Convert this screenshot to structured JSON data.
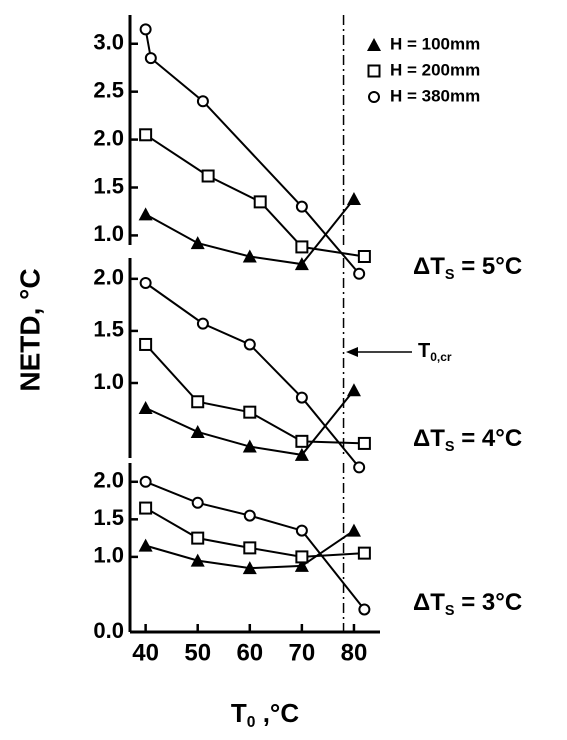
{
  "chart_data": [
    {
      "type": "line",
      "ylim": [
        0.9,
        3.3
      ],
      "yticks": [
        {
          "value": 1.0,
          "label": "1.0"
        },
        {
          "value": 1.5,
          "label": "1.5"
        },
        {
          "value": 2.0,
          "label": "2.0"
        },
        {
          "value": 2.5,
          "label": "2.5"
        },
        {
          "value": 3.0,
          "label": "3.0"
        }
      ],
      "reference_x": 78,
      "annotation": {
        "main": "ΔT",
        "sub": "S",
        "rest": " = 5°C"
      },
      "legend": "upper right",
      "series": [
        {
          "name": "H = 100mm",
          "marker": "triangle",
          "color": "#000000",
          "x": [
            40,
            50,
            60,
            70,
            80
          ],
          "values": [
            1.22,
            0.92,
            0.78,
            0.7,
            1.38
          ]
        },
        {
          "name": "H = 200mm",
          "marker": "square",
          "color": "#000000",
          "x": [
            40,
            52,
            62,
            70,
            82
          ],
          "values": [
            2.05,
            1.62,
            1.35,
            0.88,
            0.78
          ]
        },
        {
          "name": "H = 380mm",
          "marker": "circle",
          "color": "#000000",
          "x": [
            40,
            41,
            51,
            70,
            81
          ],
          "values": [
            3.15,
            2.85,
            2.4,
            1.3,
            0.6
          ]
        }
      ]
    },
    {
      "type": "line",
      "ylim": [
        0.28,
        2.2
      ],
      "yticks": [
        {
          "value": 1.0,
          "label": "1.0"
        },
        {
          "value": 1.5,
          "label": "1.5"
        },
        {
          "value": 2.0,
          "label": "2.0"
        }
      ],
      "ylabel": "NETD, °C",
      "reference_x": 78,
      "reference_label": {
        "main": "T",
        "sub": "0,cr"
      },
      "annotation": {
        "main": "ΔT",
        "sub": "S",
        "rest": " = 4°C"
      },
      "series": [
        {
          "marker": "triangle",
          "color": "#000000",
          "x": [
            40,
            50,
            60,
            70,
            80
          ],
          "values": [
            0.76,
            0.53,
            0.39,
            0.31,
            0.93
          ]
        },
        {
          "marker": "square",
          "color": "#000000",
          "x": [
            40,
            50,
            60,
            70,
            82
          ],
          "values": [
            1.37,
            0.82,
            0.72,
            0.44,
            0.42
          ]
        },
        {
          "marker": "circle",
          "color": "#000000",
          "x": [
            40,
            51,
            60,
            70,
            81
          ],
          "values": [
            1.96,
            1.57,
            1.37,
            0.86,
            0.19
          ]
        }
      ]
    },
    {
      "type": "line",
      "ylim": [
        0,
        2.25
      ],
      "yticks": [
        {
          "value": 0.0,
          "label": "0.0"
        },
        {
          "value": 1.0,
          "label": "1.0"
        },
        {
          "value": 1.5,
          "label": "1.5"
        },
        {
          "value": 2.0,
          "label": "2.0"
        }
      ],
      "xlim": [
        37,
        85
      ],
      "xticks": [
        40,
        50,
        60,
        70,
        80
      ],
      "xlabel": {
        "main": "T",
        "sub": "0",
        "rest": " ,°C"
      },
      "reference_x": 78,
      "annotation": {
        "main": "ΔT",
        "sub": "S",
        "rest": " = 3°C"
      },
      "series": [
        {
          "marker": "triangle",
          "color": "#000000",
          "x": [
            40,
            50,
            60,
            70,
            80
          ],
          "values": [
            1.15,
            0.95,
            0.85,
            0.88,
            1.35
          ]
        },
        {
          "marker": "square",
          "color": "#000000",
          "x": [
            40,
            50,
            60,
            70,
            82
          ],
          "values": [
            1.65,
            1.25,
            1.12,
            1.0,
            1.05
          ]
        },
        {
          "marker": "circle",
          "color": "#000000",
          "x": [
            40,
            50,
            60,
            70,
            82
          ],
          "values": [
            2.0,
            1.72,
            1.55,
            1.35,
            0.3
          ]
        }
      ]
    }
  ]
}
